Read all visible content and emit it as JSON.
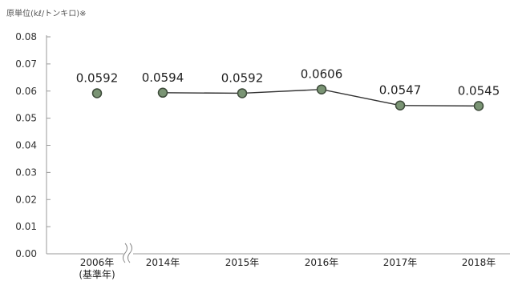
{
  "chart_data": {
    "type": "line",
    "ylabel": "原単位(kℓ/トンキロ)※",
    "xlabel": "",
    "ylim": [
      0,
      0.08
    ],
    "yticks": [
      "0.00",
      "0.01",
      "0.02",
      "0.03",
      "0.04",
      "0.05",
      "0.06",
      "0.07",
      "0.08"
    ],
    "categories": [
      "2006年",
      "2014年",
      "2015年",
      "2016年",
      "2017年",
      "2018年"
    ],
    "category_sublabels": [
      "(基準年)",
      "",
      "",
      "",
      "",
      ""
    ],
    "values": [
      0.0592,
      0.0594,
      0.0592,
      0.0606,
      0.0547,
      0.0545
    ],
    "value_labels": [
      "0.0592",
      "0.0594",
      "0.0592",
      "0.0606",
      "0.0547",
      "0.0545"
    ],
    "connected_from_index": 1,
    "axis_break_after_index": 0,
    "grid": false,
    "marker_color": "#7a9474",
    "marker_edge_color": "#3d4a3a",
    "line_color": "#333333"
  }
}
